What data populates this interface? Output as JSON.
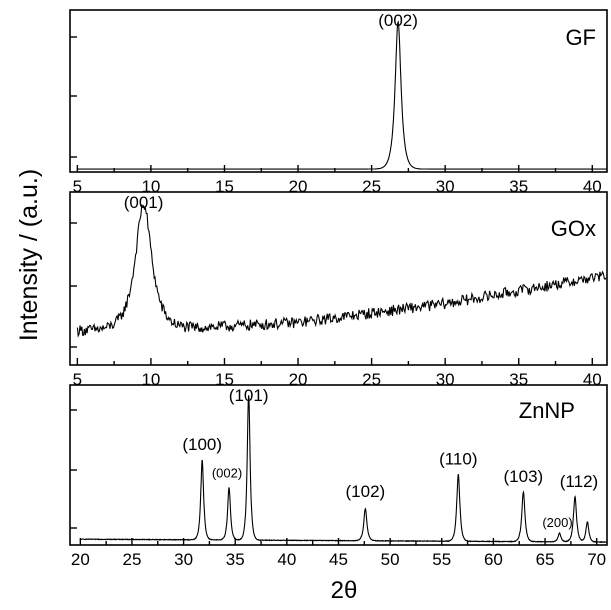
{
  "figure": {
    "ylabel": "Intensity / (a.u.)",
    "xlabel": "2θ"
  },
  "chart_data": [
    {
      "type": "line",
      "name": "GF",
      "xlim": [
        4.5,
        41
      ],
      "ylim": [
        0,
        1.1
      ],
      "xticks": [
        5,
        10,
        15,
        20,
        25,
        30,
        35,
        40
      ],
      "baseline": 0.02,
      "noise": 0.0,
      "trend": [
        [
          5,
          0.0
        ],
        [
          41,
          0.0
        ]
      ],
      "peaks": [
        {
          "x": 26.8,
          "height": 1.0,
          "width": 0.32,
          "label": "(002)"
        }
      ],
      "grid": false,
      "legend": "none"
    },
    {
      "type": "line",
      "name": "GOx",
      "xlim": [
        4.5,
        41
      ],
      "ylim": [
        0,
        1.1
      ],
      "xticks": [
        5,
        10,
        15,
        20,
        25,
        30,
        35,
        40
      ],
      "baseline": 0.22,
      "noise": 0.035,
      "trend": [
        [
          5,
          0.0
        ],
        [
          10,
          0.0
        ],
        [
          20,
          0.05
        ],
        [
          30,
          0.17
        ],
        [
          41,
          0.35
        ]
      ],
      "peaks": [
        {
          "x": 9.5,
          "height": 0.8,
          "width": 0.9,
          "label": "(001)"
        }
      ],
      "grid": false,
      "legend": "none"
    },
    {
      "type": "line",
      "name": "ZnNP",
      "xlim": [
        19,
        71
      ],
      "ylim": [
        0,
        1.1
      ],
      "xticks": [
        20,
        25,
        30,
        35,
        40,
        45,
        50,
        55,
        60,
        65,
        70
      ],
      "baseline": 0.04,
      "noise": 0.002,
      "trend": [
        [
          20,
          0.0
        ],
        [
          71,
          -0.02
        ]
      ],
      "peaks": [
        {
          "x": 31.8,
          "height": 0.55,
          "width": 0.22,
          "label": "(100)"
        },
        {
          "x": 34.4,
          "height": 0.36,
          "width": 0.22,
          "label": "(002)"
        },
        {
          "x": 36.3,
          "height": 1.0,
          "width": 0.22,
          "label": "(101)"
        },
        {
          "x": 47.6,
          "height": 0.22,
          "width": 0.24,
          "label": "(102)"
        },
        {
          "x": 56.6,
          "height": 0.46,
          "width": 0.24,
          "label": "(110)"
        },
        {
          "x": 62.9,
          "height": 0.34,
          "width": 0.24,
          "label": "(103)"
        },
        {
          "x": 66.4,
          "height": 0.06,
          "width": 0.22,
          "label": "(200)"
        },
        {
          "x": 67.9,
          "height": 0.31,
          "width": 0.24,
          "label": "(112)"
        },
        {
          "x": 69.1,
          "height": 0.14,
          "width": 0.22,
          "label": ""
        }
      ],
      "grid": false,
      "legend": "none"
    }
  ]
}
